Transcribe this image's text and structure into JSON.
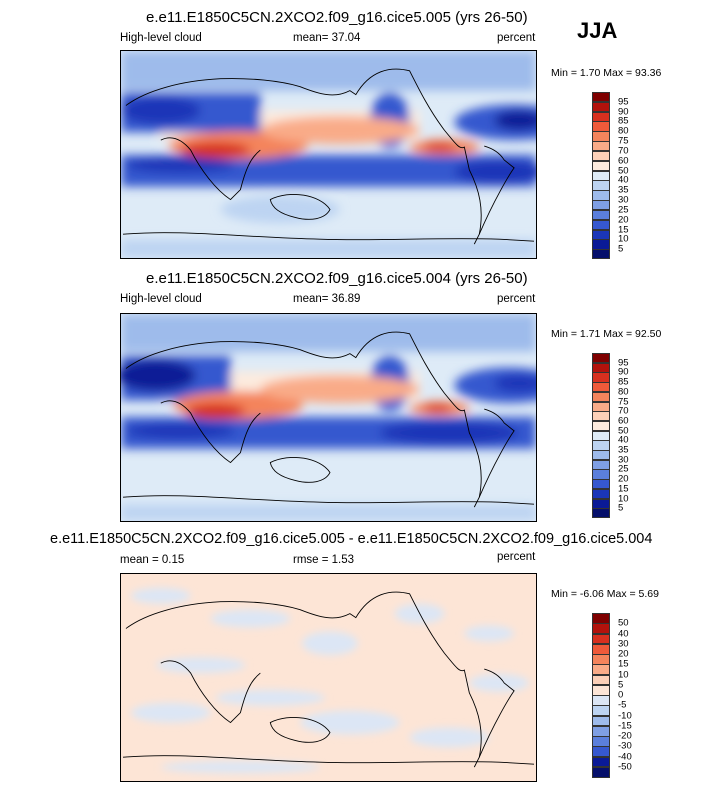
{
  "season": "JJA",
  "panels": [
    {
      "title": "e.e11.E1850C5CN.2XCO2.f09_g16.cice5.005 (yrs 26-50)",
      "left_label": "High-level cloud",
      "center_label": "mean=  37.04",
      "right_label": "percent",
      "minmax": "Min =   1.70 Max =  93.36",
      "colorbar": {
        "labels": [
          "95",
          "90",
          "85",
          "80",
          "75",
          "70",
          "60",
          "50",
          "40",
          "35",
          "30",
          "25",
          "20",
          "15",
          "10",
          "5"
        ],
        "colors": [
          "#7f0000",
          "#b2120c",
          "#d7301f",
          "#ef5a3a",
          "#f4845c",
          "#f9ab88",
          "#fcd0b8",
          "#fdebde",
          "#deebf7",
          "#bdd4f2",
          "#9ebbeb",
          "#7f9fe4",
          "#5b7fdc",
          "#3658cf",
          "#1b36b8",
          "#0a1a96",
          "#050f6b"
        ]
      }
    },
    {
      "title": "e.e11.E1850C5CN.2XCO2.f09_g16.cice5.004 (yrs 26-50)",
      "left_label": "High-level cloud",
      "center_label": "mean=  36.89",
      "right_label": "percent",
      "minmax": "Min =   1.71 Max =  92.50",
      "colorbar": {
        "labels": [
          "95",
          "90",
          "85",
          "80",
          "75",
          "70",
          "60",
          "50",
          "40",
          "35",
          "30",
          "25",
          "20",
          "15",
          "10",
          "5"
        ],
        "colors": [
          "#7f0000",
          "#b2120c",
          "#d7301f",
          "#ef5a3a",
          "#f4845c",
          "#f9ab88",
          "#fcd0b8",
          "#fdebde",
          "#deebf7",
          "#bdd4f2",
          "#9ebbeb",
          "#7f9fe4",
          "#5b7fdc",
          "#3658cf",
          "#1b36b8",
          "#0a1a96",
          "#050f6b"
        ]
      }
    },
    {
      "title": "e.e11.E1850C5CN.2XCO2.f09_g16.cice5.005 - e.e11.E1850C5CN.2XCO2.f09_g16.cice5.004",
      "left_label": "mean =   0.15",
      "center_label": "rmse =   1.53",
      "right_label": "percent",
      "minmax": "Min =  -6.06 Max =   5.69",
      "colorbar": {
        "labels": [
          "50",
          "40",
          "30",
          "20",
          "15",
          "10",
          "5",
          "0",
          "-5",
          "-10",
          "-15",
          "-20",
          "-30",
          "-40",
          "-50"
        ],
        "colors": [
          "#7f0000",
          "#b2120c",
          "#d7301f",
          "#ef5a3a",
          "#f4845c",
          "#f9ab88",
          "#fcd0b8",
          "#fde5d6",
          "#dce6f5",
          "#bdd4f2",
          "#9ebbeb",
          "#7f9fe4",
          "#5b7fdc",
          "#3658cf",
          "#0a1a96",
          "#050f6b"
        ]
      }
    }
  ]
}
